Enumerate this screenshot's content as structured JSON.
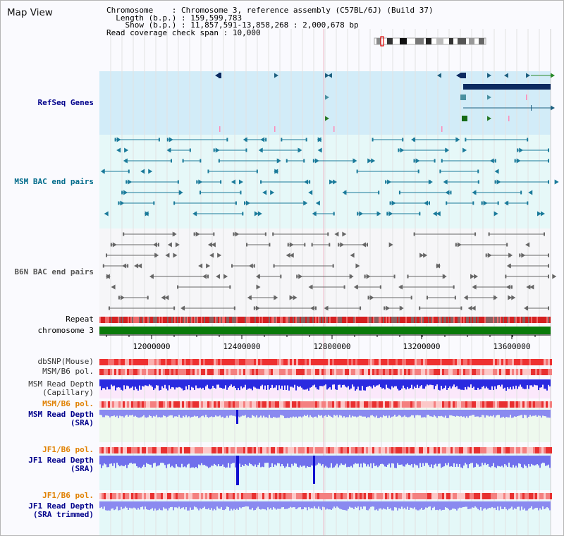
{
  "title": "Map View",
  "info": {
    "chromosome_key": "Chromosome",
    "chromosome_val": "Chromosome 3, reference assembly (C57BL/6J) (Build 37)",
    "length_key": "Length (b.p.)",
    "length_val": "159,599,783",
    "show_key": "Show (b.p.)",
    "show_val": "11,857,591-13,858,268 : 2,000,678 bp",
    "coverage_key": "Read coverage check span",
    "coverage_val": "10,000"
  },
  "tracks": {
    "refseq": "RefSeq Genes",
    "msm_bac": "MSM BAC end pairs",
    "b6n_bac": "B6N BAC end pairs",
    "repeat": "Repeat",
    "chromosome": "chromosome 3",
    "dbsnp": "dbSNP(Mouse)",
    "msm_b6_pol": "MSM/B6 pol.",
    "msm_depth_cap_1": "MSM Read Depth",
    "msm_depth_cap_2": "(Capillary)",
    "msm_b6_pol2": "MSM/B6 pol.",
    "msm_depth_sra_1": "MSM Read Depth",
    "msm_depth_sra_2": "(SRA)",
    "jf1_b6_pol": "JF1/B6 pol.",
    "jf1_depth_sra_1": "JF1 Read Depth",
    "jf1_depth_sra_2": "(SRA)",
    "jf1_b6_pol2": "JF1/B6 pol.",
    "jf1_depth_trim_1": "JF1 Read Depth",
    "jf1_depth_trim_2": "(SRA trimmed)"
  },
  "axis": {
    "ticks": [
      "12000000",
      "12400000",
      "12800000",
      "13200000",
      "13600000"
    ]
  },
  "colors": {
    "refseq_bg": "#d2ecf8",
    "msm_bg": "#e6f8f8",
    "b6n_bg": "#f6f6f8",
    "gene": "#1e6080",
    "gene_dark": "#0c2a60",
    "msm_feature": "#1a7a9a",
    "b6n_feature": "#666666",
    "chromosome_bar": "#0a7a0a",
    "depth": "#3b3bdd",
    "label_blue": "#00008b",
    "label_orange": "#e08000",
    "label_teal": "#006b8b"
  }
}
